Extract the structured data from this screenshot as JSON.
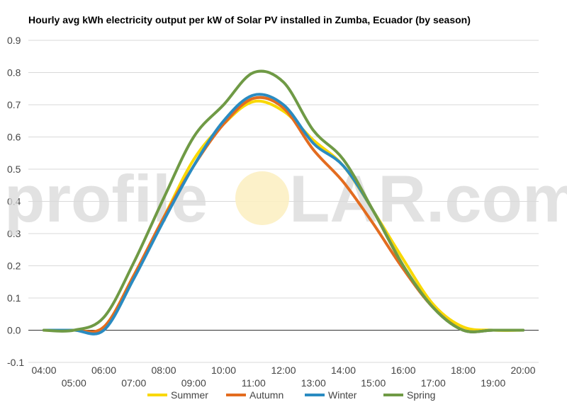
{
  "chart_data": {
    "type": "line",
    "title": "Hourly avg kWh electricity output per kW of Solar PV installed in Zumba, Ecuador (by season)",
    "x": [
      "04:00",
      "05:00",
      "06:00",
      "07:00",
      "08:00",
      "09:00",
      "10:00",
      "11:00",
      "12:00",
      "13:00",
      "14:00",
      "15:00",
      "16:00",
      "17:00",
      "18:00",
      "19:00",
      "20:00"
    ],
    "ylim": [
      -0.1,
      0.9
    ],
    "yticks": [
      "-0.1",
      "0.0",
      "0.1",
      "0.2",
      "0.3",
      "0.4",
      "0.5",
      "0.6",
      "0.7",
      "0.8",
      "0.9"
    ],
    "grid": true,
    "legend_position": "bottom",
    "watermark": {
      "left": "profile",
      "right": "LAR.com"
    },
    "series": [
      {
        "name": "Summer",
        "color": "#f9d800",
        "values": [
          0.0,
          0.0,
          0.01,
          0.17,
          0.35,
          0.53,
          0.64,
          0.71,
          0.68,
          0.59,
          0.51,
          0.37,
          0.22,
          0.08,
          0.01,
          0.0,
          0.0
        ]
      },
      {
        "name": "Autumn",
        "color": "#e36c1f",
        "values": [
          0.0,
          0.0,
          0.01,
          0.17,
          0.35,
          0.51,
          0.64,
          0.72,
          0.69,
          0.56,
          0.46,
          0.33,
          0.19,
          0.07,
          0.0,
          0.0,
          0.0
        ]
      },
      {
        "name": "Winter",
        "color": "#2a8bc1",
        "values": [
          0.0,
          0.0,
          0.0,
          0.16,
          0.34,
          0.51,
          0.65,
          0.73,
          0.7,
          0.58,
          0.51,
          0.37,
          0.2,
          0.07,
          0.0,
          0.0,
          0.0
        ]
      },
      {
        "name": "Spring",
        "color": "#6f9a45",
        "values": [
          0.0,
          0.0,
          0.04,
          0.21,
          0.41,
          0.6,
          0.7,
          0.8,
          0.77,
          0.62,
          0.53,
          0.37,
          0.2,
          0.07,
          0.0,
          0.0,
          0.0
        ]
      }
    ]
  }
}
